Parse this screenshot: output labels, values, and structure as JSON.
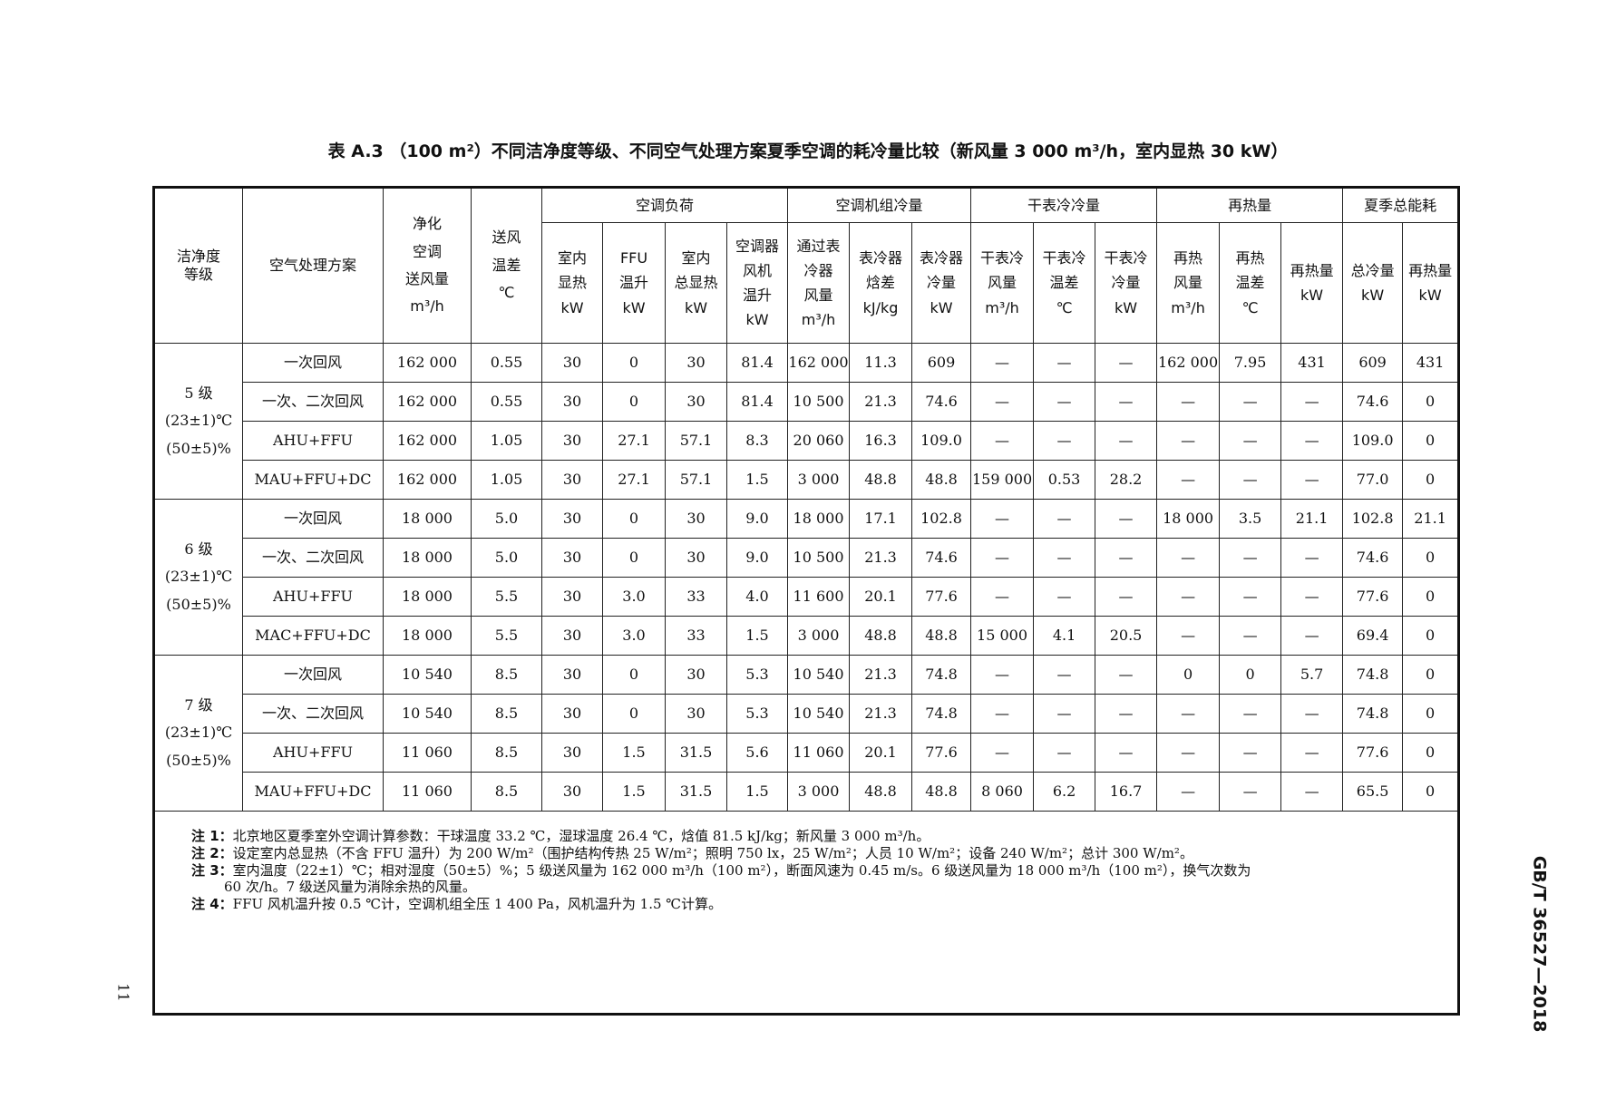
{
  "title": "表 A.3 （100 m²）不同洁净度等级、不同空气处理方案夏季空调的耗冷量比较（新风量 3 000 m³/h，室内显热 30 kW）",
  "header": {
    "level": "洁净度\n等级",
    "scheme": "空气处理方案",
    "supply_air": "净化\n空调\n送风量\nm³/h",
    "supply_dt": "送风\n温差\n℃",
    "groups": [
      "空调负荷",
      "空调机组冷量",
      "干表冷冷量",
      "再热量",
      "夏季总能耗"
    ],
    "sub": [
      "室内\n显热\nkW",
      "FFU\n温升\nkW",
      "室内\n总显热\nkW",
      "空调器\n风机\n温升\nkW",
      "通过表\n冷器\n风量\nm³/h",
      "表冷器\n焓差\nkJ/kg",
      "表冷器\n冷量\nkW",
      "干表冷\n风量\nm³/h",
      "干表冷\n温差\n℃",
      "干表冷\n冷量\nkW",
      "再热\n风量\nm³/h",
      "再热\n温差\n℃",
      "再热量\nkW",
      "总冷量\nkW",
      "再热量\nkW"
    ]
  },
  "levels": [
    {
      "label": "5 级\n(23±1)℃\n(50±5)%",
      "rows": [
        [
          "一次回风",
          "162 000",
          "0.55",
          "30",
          "0",
          "30",
          "81.4",
          "162 000",
          "11.3",
          "609",
          "—",
          "—",
          "—",
          "162 000",
          "7.95",
          "431",
          "609",
          "431"
        ],
        [
          "一次、二次回风",
          "162 000",
          "0.55",
          "30",
          "0",
          "30",
          "81.4",
          "10 500",
          "21.3",
          "74.6",
          "—",
          "—",
          "—",
          "—",
          "—",
          "—",
          "74.6",
          "0"
        ],
        [
          "AHU+FFU",
          "162 000",
          "1.05",
          "30",
          "27.1",
          "57.1",
          "8.3",
          "20 060",
          "16.3",
          "109.0",
          "—",
          "—",
          "—",
          "—",
          "—",
          "—",
          "109.0",
          "0"
        ],
        [
          "MAU+FFU+DC",
          "162 000",
          "1.05",
          "30",
          "27.1",
          "57.1",
          "1.5",
          "3 000",
          "48.8",
          "48.8",
          "159 000",
          "0.53",
          "28.2",
          "—",
          "—",
          "—",
          "77.0",
          "0"
        ]
      ]
    },
    {
      "label": "6 级\n(23±1)℃\n(50±5)%",
      "rows": [
        [
          "一次回风",
          "18 000",
          "5.0",
          "30",
          "0",
          "30",
          "9.0",
          "18 000",
          "17.1",
          "102.8",
          "—",
          "—",
          "—",
          "18 000",
          "3.5",
          "21.1",
          "102.8",
          "21.1"
        ],
        [
          "一次、二次回风",
          "18 000",
          "5.0",
          "30",
          "0",
          "30",
          "9.0",
          "10 500",
          "21.3",
          "74.6",
          "—",
          "—",
          "—",
          "—",
          "—",
          "—",
          "74.6",
          "0"
        ],
        [
          "AHU+FFU",
          "18 000",
          "5.5",
          "30",
          "3.0",
          "33",
          "4.0",
          "11 600",
          "20.1",
          "77.6",
          "—",
          "—",
          "—",
          "—",
          "—",
          "—",
          "77.6",
          "0"
        ],
        [
          "MAC+FFU+DC",
          "18 000",
          "5.5",
          "30",
          "3.0",
          "33",
          "1.5",
          "3 000",
          "48.8",
          "48.8",
          "15 000",
          "4.1",
          "20.5",
          "—",
          "—",
          "—",
          "69.4",
          "0"
        ]
      ]
    },
    {
      "label": "7 级\n(23±1)℃\n(50±5)%",
      "rows": [
        [
          "一次回风",
          "10 540",
          "8.5",
          "30",
          "0",
          "30",
          "5.3",
          "10 540",
          "21.3",
          "74.8",
          "—",
          "—",
          "—",
          "0",
          "0",
          "5.7",
          "74.8",
          "0"
        ],
        [
          "一次、二次回风",
          "10 540",
          "8.5",
          "30",
          "0",
          "30",
          "5.3",
          "10 540",
          "21.3",
          "74.8",
          "—",
          "—",
          "—",
          "—",
          "—",
          "—",
          "74.8",
          "0"
        ],
        [
          "AHU+FFU",
          "11 060",
          "8.5",
          "30",
          "1.5",
          "31.5",
          "5.6",
          "11 060",
          "20.1",
          "77.6",
          "—",
          "—",
          "—",
          "—",
          "—",
          "—",
          "77.6",
          "0"
        ],
        [
          "MAU+FFU+DC",
          "11 060",
          "8.5",
          "30",
          "1.5",
          "31.5",
          "1.5",
          "3 000",
          "48.8",
          "48.8",
          "8 060",
          "6.2",
          "16.7",
          "—",
          "—",
          "—",
          "65.5",
          "0"
        ]
      ]
    }
  ],
  "notes": [
    {
      "label": "注 1：",
      "text": "北京地区夏季室外空调计算参数：干球温度 33.2 ℃，湿球温度 26.4 ℃，焓值 81.5 kJ/kg；新风量 3 000 m³/h。"
    },
    {
      "label": "注 2：",
      "text": "设定室内总显热（不含 FFU 温升）为 200 W/m²（围护结构传热 25 W/m²；照明 750 lx，25 W/m²；人员 10 W/m²；设备 240 W/m²；总计 300 W/m²。"
    },
    {
      "label": "注 3：",
      "text": "室内温度（22±1）℃；相对湿度（50±5）%；5 级送风量为 162 000 m³/h（100 m²），断面风速为 0.45 m/s。6 级送风量为 18 000 m³/h（100 m²），换气次数为",
      "cont": "60 次/h。7 级送风量为消除余热的风量。"
    },
    {
      "label": "注 4：",
      "text": "FFU 风机温升按 0.5 ℃计，空调机组全压 1 400 Pa，风机温升为 1.5 ℃计算。"
    }
  ],
  "side_label": "GB/T 36527—2018",
  "page_number": "11"
}
